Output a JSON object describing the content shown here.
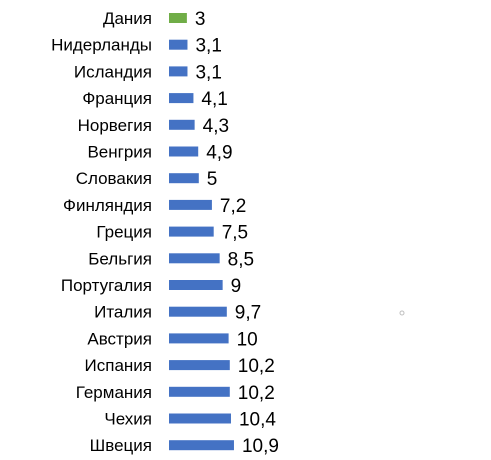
{
  "chart_data": {
    "type": "bar",
    "orientation": "horizontal",
    "categories": [
      "Дания",
      "Нидерланды",
      "Исландия",
      "Франция",
      "Норвегия",
      "Венгрия",
      "Словакия",
      "Финляндия",
      "Греция",
      "Бельгия",
      "Португалия",
      "Италия",
      "Австрия",
      "Испания",
      "Германия",
      "Чехия",
      "Швеция"
    ],
    "values": [
      3,
      3.1,
      3.1,
      4.1,
      4.3,
      4.9,
      5,
      7.2,
      7.5,
      8.5,
      9,
      9.7,
      10,
      10.2,
      10.2,
      10.4,
      10.9
    ],
    "value_labels": [
      "3",
      "3,1",
      "3,1",
      "4,1",
      "4,3",
      "4,9",
      "5",
      "7,2",
      "7,5",
      "8,5",
      "9",
      "9,7",
      "10",
      "10,2",
      "10,2",
      "10,4",
      "10,9"
    ],
    "highlight_index": 0,
    "colors": {
      "bar": "#4472c4",
      "highlight": "#70ad47"
    },
    "title": "",
    "xlabel": "",
    "ylabel": "",
    "xlim": [
      0,
      10.9
    ],
    "grid": false,
    "legend": "none"
  }
}
